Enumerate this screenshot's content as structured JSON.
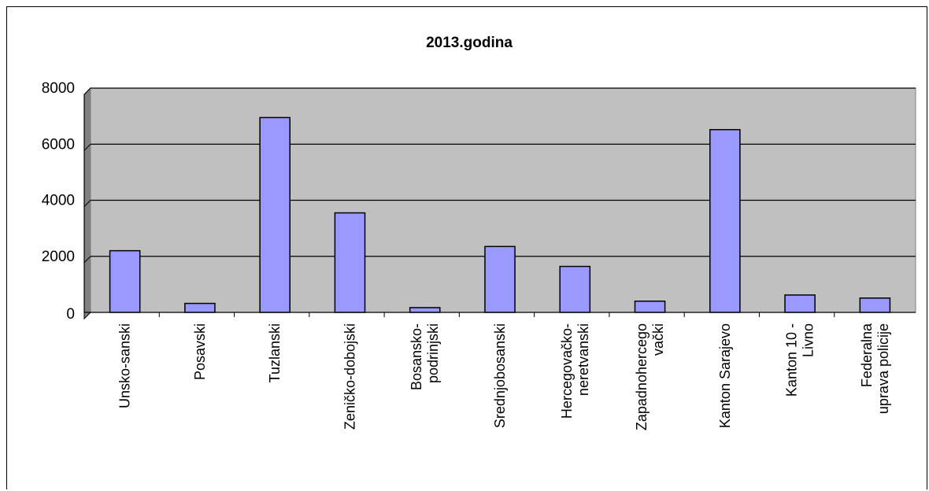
{
  "chart_data": {
    "type": "bar",
    "title": "2013.godina",
    "xlabel": "",
    "ylabel": "",
    "ylim": [
      0,
      8000
    ],
    "yticks": [
      0,
      2000,
      4000,
      6000,
      8000
    ],
    "grid": true,
    "legend": "none",
    "categories": [
      "Unsko-sanski",
      "Posavski",
      "Tuzlanski",
      "Zeničko-dobojski",
      "Bosansko-podrinjski",
      "Srednjobosanski",
      "Hercegovačko-neretvanski",
      "Zapadnohercegovački",
      "Kanton Sarajevo",
      "Kanton 10 - Livno",
      "Federalna uprava policije"
    ],
    "category_lines": [
      [
        "Unsko-sanski"
      ],
      [
        "Posavski"
      ],
      [
        "Tuzlanski"
      ],
      [
        "Zeničko-dobojski"
      ],
      [
        "Bosansko-",
        "podrinjski"
      ],
      [
        "Srednjobosanski"
      ],
      [
        "Hercegovačko-",
        "neretvanski"
      ],
      [
        "Zapadnohercego",
        "vački"
      ],
      [
        "Kanton Sarajevo"
      ],
      [
        "Kanton 10 -",
        "Livno"
      ],
      [
        "Federalna",
        "uprava policije"
      ]
    ],
    "values": [
      2200,
      320,
      6950,
      3550,
      170,
      2350,
      1640,
      400,
      6520,
      620,
      510
    ],
    "colors": {
      "bar_fill": "#9999FF",
      "plot_background": "#C0C0C0",
      "gridline": "#000000"
    }
  }
}
